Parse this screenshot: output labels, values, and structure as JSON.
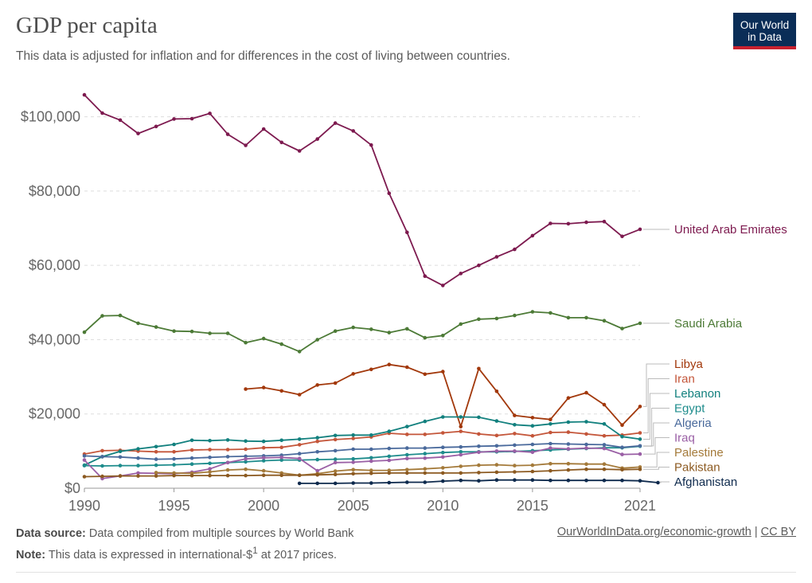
{
  "header": {
    "title": "GDP per capita",
    "subtitle": "This data is adjusted for inflation and for differences in the cost of living between countries."
  },
  "logo": {
    "line1": "Our World",
    "line2": "in Data"
  },
  "footer": {
    "source_label": "Data source:",
    "source_text": "Data compiled from multiple sources by World Bank",
    "note_label": "Note:",
    "note_text_before": "This data is expressed in international-$",
    "note_sup": "1",
    "note_text_after": " at 2017 prices.",
    "link_text": "OurWorldInData.org/economic-growth",
    "separator": "|",
    "license_text": "CC BY"
  },
  "chart_data": {
    "type": "line",
    "title": "GDP per capita",
    "xlim": [
      1990,
      2021
    ],
    "ylim": [
      0,
      110000
    ],
    "x_ticks": [
      1990,
      1995,
      2000,
      2005,
      2010,
      2015,
      2021
    ],
    "x_tick_labels": [
      "1990",
      "1995",
      "2000",
      "2005",
      "2010",
      "2015",
      "2021"
    ],
    "y_ticks": [
      0,
      20000,
      40000,
      60000,
      80000,
      100000
    ],
    "y_tick_labels": [
      "$0",
      "$20,000",
      "$40,000",
      "$60,000",
      "$80,000",
      "$100,000"
    ],
    "grid": "horizontal-dashed",
    "legend": "right-end-labels",
    "series": [
      {
        "name": "United Arab Emirates",
        "color": "#7d1a4f",
        "start": 1990,
        "values": [
          105900,
          101000,
          99100,
          95500,
          97400,
          99400,
          99500,
          100900,
          95300,
          92300,
          96700,
          93100,
          90800,
          94000,
          98300,
          96200,
          92400,
          79400,
          68900,
          57100,
          54600,
          57800,
          60000,
          62300,
          64300,
          68000,
          71300,
          71200,
          71600,
          71800,
          67800,
          69700
        ]
      },
      {
        "name": "Saudi Arabia",
        "color": "#4c7a36",
        "start": 1990,
        "values": [
          42000,
          46400,
          46500,
          44400,
          43400,
          42300,
          42200,
          41700,
          41700,
          39200,
          40300,
          38800,
          36800,
          40000,
          42300,
          43300,
          42800,
          41900,
          42900,
          40500,
          41100,
          44200,
          45500,
          45700,
          46500,
          47500,
          47200,
          45900,
          45900,
          45100,
          43000,
          44400
        ]
      },
      {
        "name": "Libya",
        "color": "#a2380b",
        "start": 1999,
        "values": [
          26700,
          27100,
          26200,
          25200,
          27800,
          28300,
          30800,
          32000,
          33300,
          32600,
          30700,
          31400,
          16600,
          32200,
          26100,
          19600,
          19000,
          18500,
          24300,
          25700,
          22500,
          17000,
          22000
        ]
      },
      {
        "name": "Iran",
        "color": "#c4563a",
        "start": 1990,
        "values": [
          9200,
          10100,
          10200,
          10000,
          9800,
          9800,
          10300,
          10400,
          10400,
          10500,
          10900,
          11000,
          11700,
          12600,
          13100,
          13400,
          13800,
          14800,
          14500,
          14500,
          14900,
          15300,
          14600,
          14200,
          14700,
          14100,
          15000,
          15100,
          14600,
          14100,
          14300,
          14900
        ]
      },
      {
        "name": "Lebanon",
        "color": "#12807e",
        "start": 1990,
        "values": [
          6200,
          8500,
          9900,
          10600,
          11200,
          11800,
          12900,
          12800,
          13000,
          12700,
          12600,
          12900,
          13200,
          13600,
          14200,
          14300,
          14300,
          15300,
          16600,
          18000,
          19200,
          19200,
          19100,
          18100,
          17100,
          16800,
          17300,
          17800,
          17900,
          17300,
          13900,
          13200
        ]
      },
      {
        "name": "Egypt",
        "color": "#1e8c8c",
        "start": 1990,
        "values": [
          6100,
          6000,
          6100,
          6100,
          6200,
          6300,
          6500,
          6700,
          6900,
          7100,
          7400,
          7600,
          7600,
          7700,
          7800,
          7900,
          8200,
          8600,
          9000,
          9300,
          9600,
          9800,
          9800,
          9800,
          9900,
          10100,
          10300,
          10500,
          10700,
          10900,
          10900,
          11300
        ]
      },
      {
        "name": "Algeria",
        "color": "#4a6a9c",
        "start": 1990,
        "values": [
          8700,
          8500,
          8400,
          8100,
          7800,
          7900,
          8100,
          8300,
          8500,
          8600,
          8700,
          8900,
          9300,
          9800,
          10100,
          10500,
          10500,
          10700,
          10800,
          10800,
          11000,
          11100,
          11300,
          11400,
          11600,
          11800,
          12000,
          11900,
          11800,
          11700,
          11000,
          11400
        ]
      },
      {
        "name": "Iraq",
        "color": "#9a5fa5",
        "start": 1990,
        "values": [
          7600,
          2600,
          3300,
          4100,
          4000,
          3900,
          4300,
          5200,
          6900,
          7900,
          8200,
          8300,
          8000,
          4700,
          6900,
          7000,
          7300,
          7500,
          8000,
          8100,
          8400,
          9000,
          9700,
          10000,
          10000,
          9700,
          10800,
          10600,
          10800,
          10700,
          9100,
          9200
        ]
      },
      {
        "name": "Palestine",
        "color": "#a47a3a",
        "start": 1994,
        "values": [
          4200,
          4100,
          4000,
          4400,
          4900,
          5100,
          4700,
          4100,
          3500,
          3900,
          4600,
          5000,
          4800,
          4800,
          5000,
          5200,
          5500,
          5900,
          6200,
          6300,
          6100,
          6200,
          6600,
          6600,
          6500,
          6500,
          5400,
          5700
        ]
      },
      {
        "name": "Pakistan",
        "color": "#8c5a21",
        "start": 1990,
        "values": [
          3100,
          3200,
          3300,
          3300,
          3300,
          3400,
          3400,
          3400,
          3400,
          3400,
          3500,
          3500,
          3500,
          3600,
          3700,
          3900,
          4000,
          4100,
          4100,
          4100,
          4100,
          4100,
          4200,
          4300,
          4400,
          4500,
          4700,
          4900,
          5100,
          5100,
          5000,
          5100
        ]
      },
      {
        "name": "Afghanistan",
        "color": "#0e2a4d",
        "start": 2002,
        "values": [
          1300,
          1300,
          1300,
          1400,
          1400,
          1500,
          1600,
          1600,
          1900,
          2100,
          2000,
          2200,
          2200,
          2200,
          2100,
          2100,
          2100,
          2100,
          2100,
          2000,
          1500
        ]
      }
    ],
    "label_order": [
      "United Arab Emirates",
      "Saudi Arabia",
      "Libya",
      "Iran",
      "Lebanon",
      "Egypt",
      "Algeria",
      "Iraq",
      "Palestine",
      "Pakistan",
      "Afghanistan"
    ]
  }
}
